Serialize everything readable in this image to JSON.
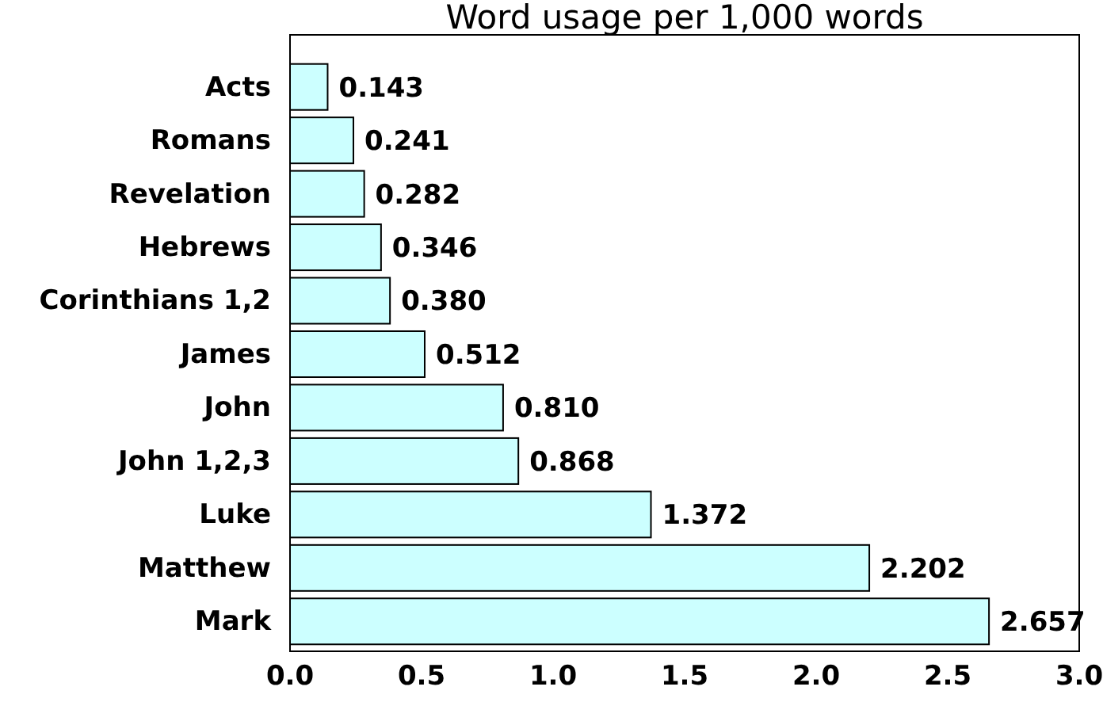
{
  "chart_data": {
    "type": "bar",
    "orientation": "horizontal",
    "title": "Word usage per 1,000 words",
    "categories": [
      "Acts",
      "Romans",
      "Revelation",
      "Hebrews",
      "Corinthians 1,2",
      "James",
      "John",
      "John 1,2,3",
      "Luke",
      "Matthew",
      "Mark"
    ],
    "values": [
      0.143,
      0.241,
      0.282,
      0.346,
      0.38,
      0.512,
      0.81,
      0.868,
      1.372,
      2.202,
      2.657
    ],
    "value_labels": [
      "0.143",
      "0.241",
      "0.282",
      "0.346",
      "0.380",
      "0.512",
      "0.810",
      "0.868",
      "1.372",
      "2.202",
      "2.657"
    ],
    "color": "#ccffff",
    "xlim": [
      0,
      3
    ],
    "xticks": [
      {
        "value": 0,
        "label": "0.0"
      },
      {
        "value": 0.5,
        "label": "0.5"
      },
      {
        "value": 1,
        "label": "1.0"
      },
      {
        "value": 1.5,
        "label": "1.5"
      },
      {
        "value": 2,
        "label": "2.0"
      },
      {
        "value": 2.5,
        "label": "2.5"
      },
      {
        "value": 3,
        "label": "3.0"
      }
    ]
  }
}
